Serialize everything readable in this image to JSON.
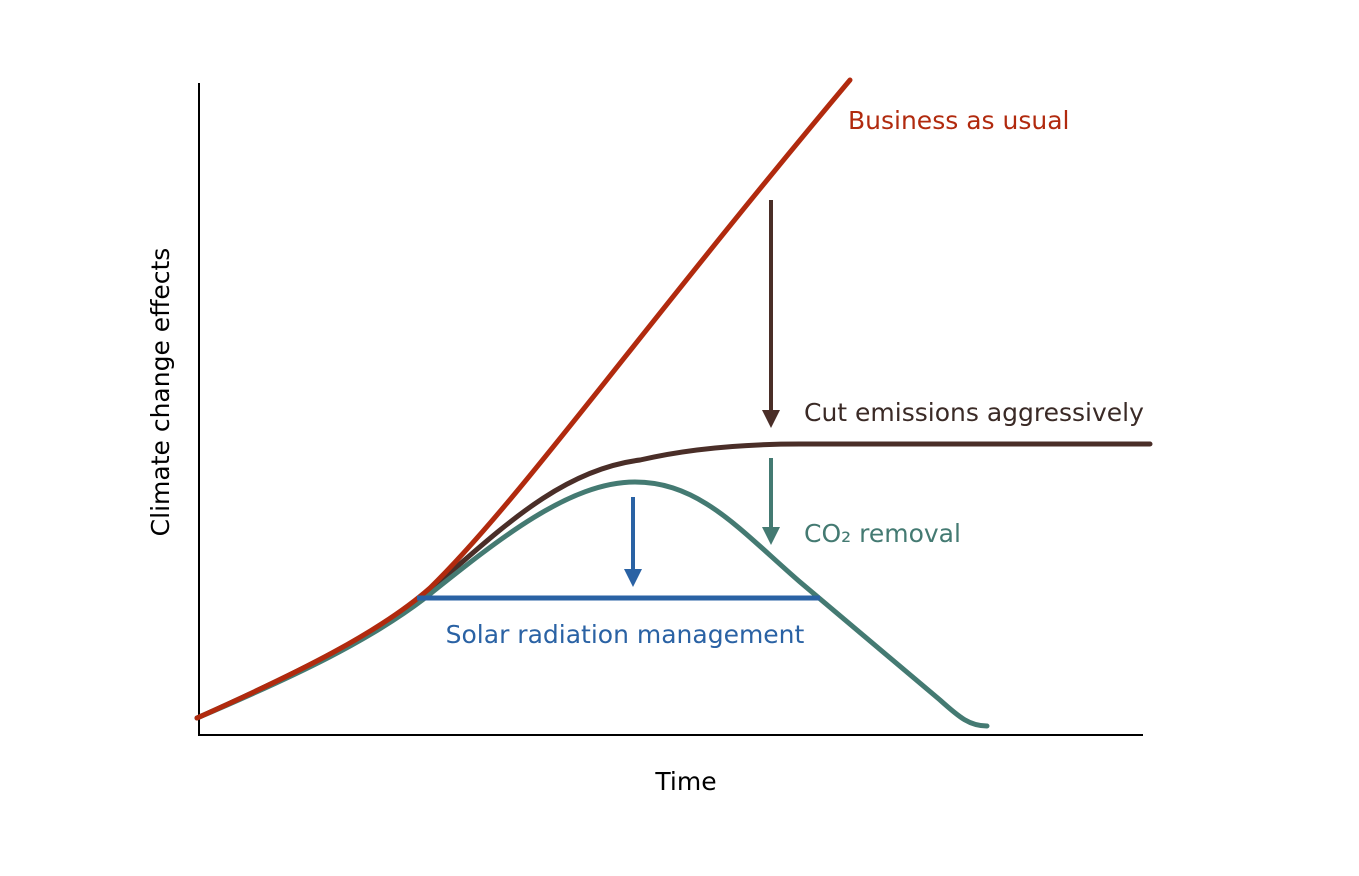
{
  "axes": {
    "x_label": "Time",
    "y_label": "Climate change effects"
  },
  "curves": [
    {
      "label": "Business as usual"
    },
    {
      "label": "Cut emissions aggressively"
    },
    {
      "label": "CO₂ removal"
    },
    {
      "label": "Solar radiation management"
    }
  ]
}
